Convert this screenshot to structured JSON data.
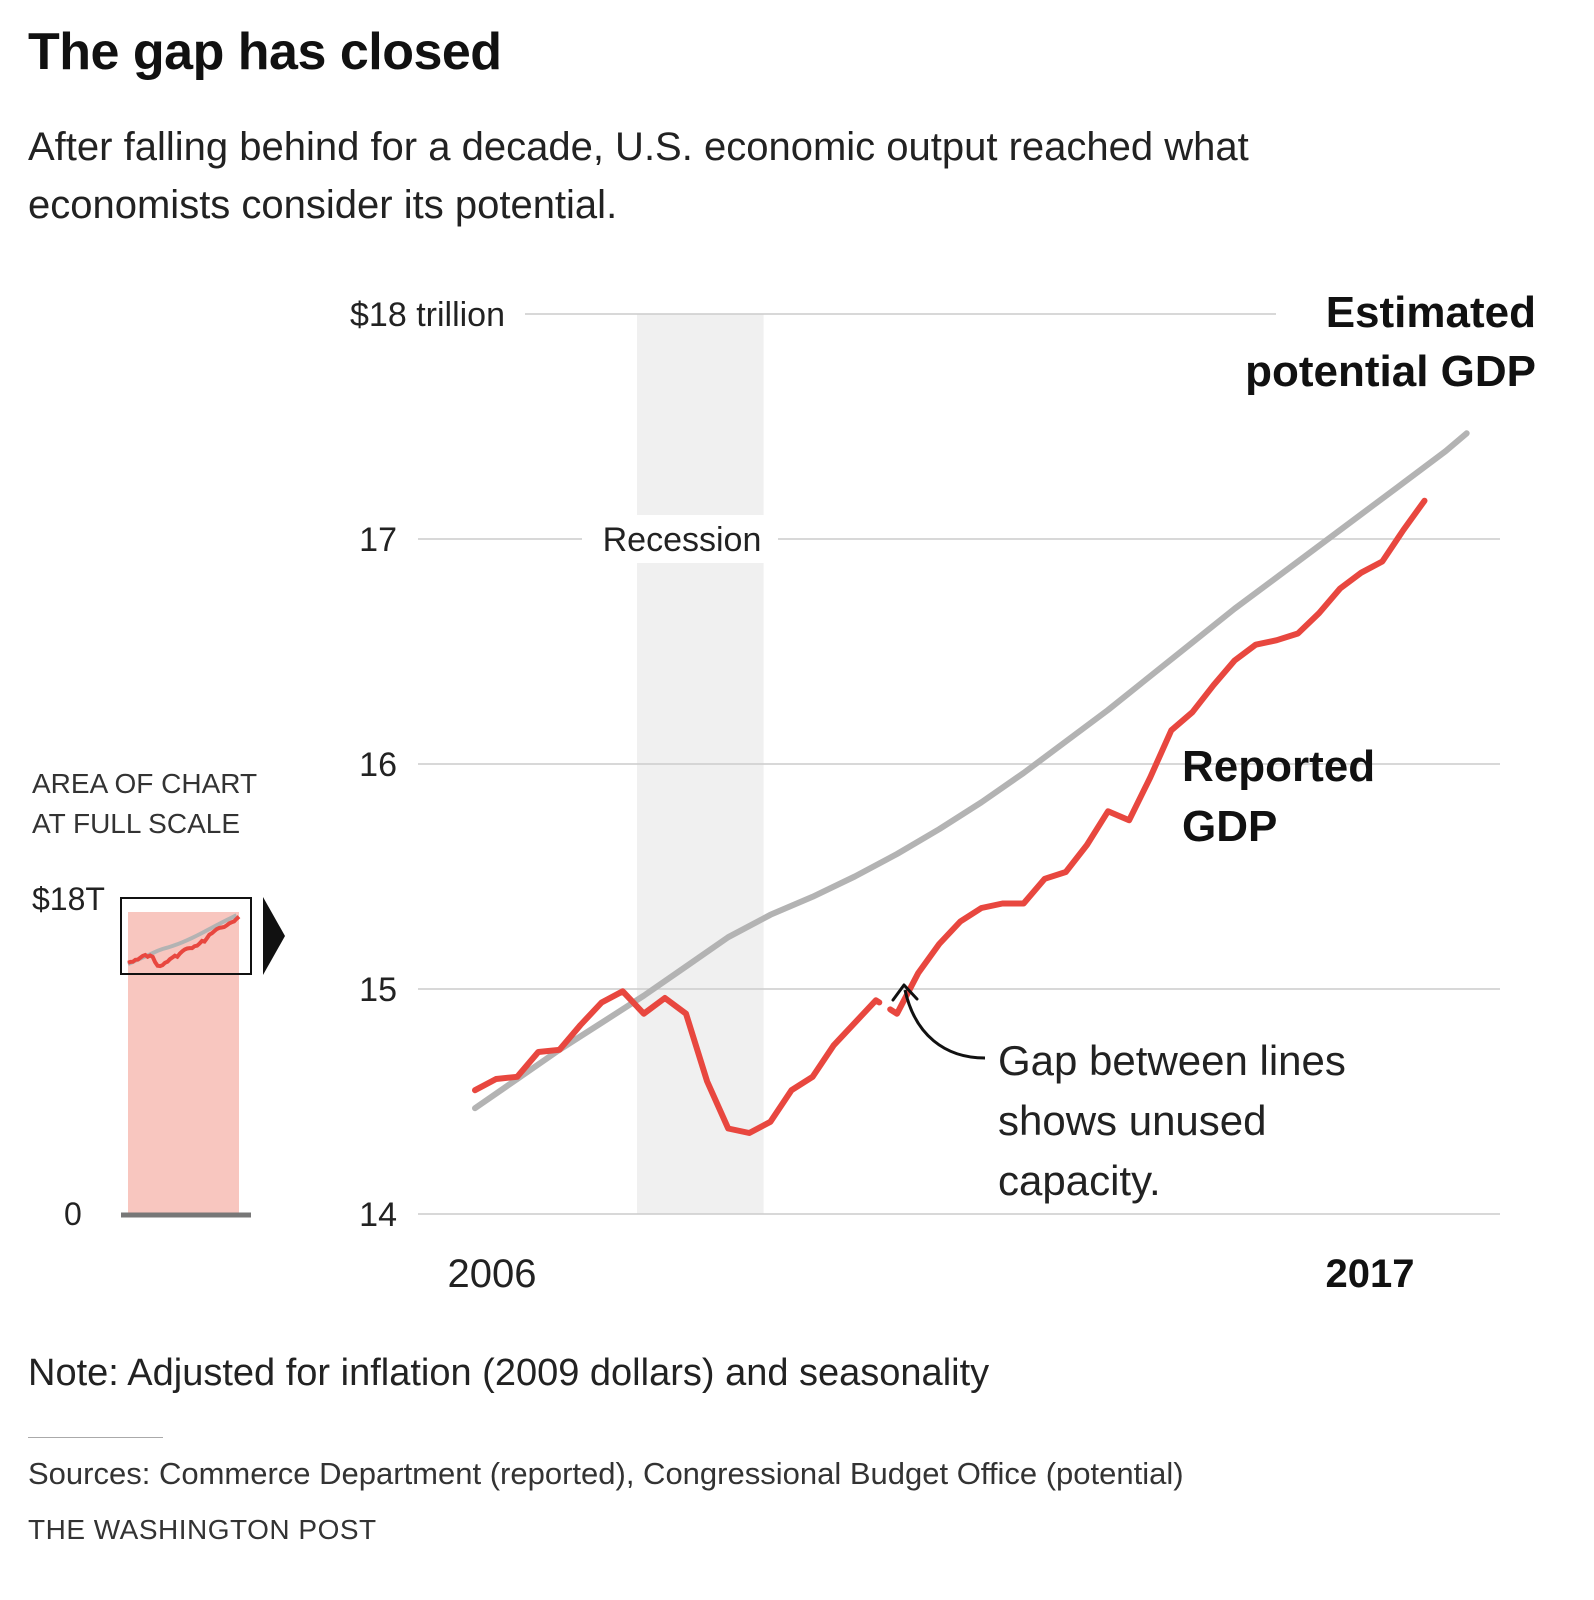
{
  "header": {
    "title": "The gap has closed",
    "subtitle": "After falling behind for a decade, U.S. economic output reached what economists consider its potential."
  },
  "inset": {
    "label_line1": "AREA OF CHART",
    "label_line2": "AT FULL SCALE",
    "top_label": "$18T",
    "zero_label": "0"
  },
  "annotations": {
    "recession": "Recession",
    "gap_line1": "Gap between lines",
    "gap_line2": "shows unused",
    "gap_line3": "capacity.",
    "potential_line1": "Estimated",
    "potential_line2": "potential GDP",
    "reported_line1": "Reported",
    "reported_line2": "GDP"
  },
  "footer": {
    "note": "Note: Adjusted for inflation (2009 dollars) and seasonality",
    "sources": "Sources: Commerce Department (reported), Congressional Budget Office (potential)",
    "credit": "THE WASHINGTON POST"
  },
  "colors": {
    "reported": "#e8473f",
    "reported_fill": "#f8c6bf",
    "potential": "#b3b3b3",
    "recession_band": "#f0f0f0",
    "gridline": "#cccccc"
  },
  "chart_data": {
    "type": "line",
    "title": "The gap has closed",
    "ylim": [
      14,
      18
    ],
    "y_ticks": [
      {
        "value": 18,
        "label": "$18 trillion"
      },
      {
        "value": 17,
        "label": "17"
      },
      {
        "value": 16,
        "label": "16"
      },
      {
        "value": 15,
        "label": "15"
      },
      {
        "value": 14,
        "label": "14"
      }
    ],
    "x_ticks": [
      {
        "value": 2006.0,
        "label": "2006",
        "bold": false
      },
      {
        "value": 2017.0,
        "label": "2017",
        "bold": true
      }
    ],
    "xlim": [
      2005.75,
      2017.75
    ],
    "recession": [
      2007.92,
      2009.42
    ],
    "series": [
      {
        "name": "Reported GDP",
        "x": [
          2006.0,
          2006.25,
          2006.5,
          2006.75,
          2007.0,
          2007.25,
          2007.5,
          2007.75,
          2008.0,
          2008.25,
          2008.5,
          2008.75,
          2009.0,
          2009.25,
          2009.5,
          2009.75,
          2010.0,
          2010.25,
          2010.5,
          2010.75,
          2011.0,
          2011.25,
          2011.5,
          2011.75,
          2012.0,
          2012.25,
          2012.5,
          2012.75,
          2013.0,
          2013.25,
          2013.5,
          2013.75,
          2014.0,
          2014.25,
          2014.5,
          2014.75,
          2015.0,
          2015.25,
          2015.5,
          2015.75,
          2016.0,
          2016.25,
          2016.5,
          2016.75,
          2017.0,
          2017.25
        ],
        "values": [
          14.55,
          14.6,
          14.61,
          14.72,
          14.73,
          14.84,
          14.94,
          14.99,
          14.89,
          14.96,
          14.89,
          14.59,
          14.38,
          14.36,
          14.41,
          14.55,
          14.61,
          14.75,
          14.85,
          14.95,
          14.89,
          15.07,
          15.2,
          15.3,
          15.36,
          15.38,
          15.38,
          15.49,
          15.52,
          15.64,
          15.79,
          15.75,
          15.94,
          16.15,
          16.23,
          16.35,
          16.46,
          16.53,
          16.55,
          16.58,
          16.67,
          16.78,
          16.85,
          16.9,
          17.04,
          17.17
        ],
        "gap": [
          2010.79,
          2010.92
        ]
      },
      {
        "name": "Estimated potential GDP",
        "x": [
          2006.0,
          2006.5,
          2007.0,
          2007.5,
          2008.0,
          2008.5,
          2009.0,
          2009.5,
          2010.0,
          2010.5,
          2011.0,
          2011.5,
          2012.0,
          2012.5,
          2013.0,
          2013.5,
          2014.0,
          2014.5,
          2015.0,
          2015.5,
          2016.0,
          2016.5,
          2017.0,
          2017.5,
          2017.75
        ],
        "values": [
          14.47,
          14.6,
          14.73,
          14.85,
          14.97,
          15.1,
          15.23,
          15.33,
          15.41,
          15.5,
          15.6,
          15.71,
          15.83,
          15.96,
          16.1,
          16.24,
          16.39,
          16.54,
          16.69,
          16.83,
          16.97,
          17.11,
          17.25,
          17.39,
          17.47
        ]
      }
    ]
  }
}
